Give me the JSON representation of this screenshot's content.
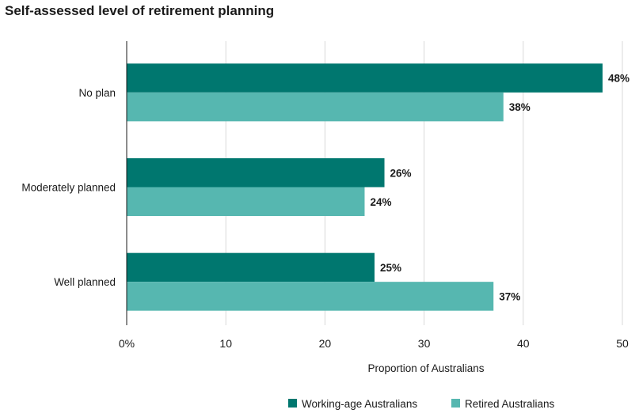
{
  "chart_data": {
    "type": "bar",
    "orientation": "horizontal",
    "title": "Self-assessed level of retirement planning",
    "categories": [
      "No plan",
      "Moderately planned",
      "Well planned"
    ],
    "series": [
      {
        "name": "Working-age Australians",
        "values": [
          48,
          26,
          25
        ],
        "labels": [
          "48%",
          "26%",
          "25%"
        ],
        "color": "#00776f"
      },
      {
        "name": "Retired Australians",
        "values": [
          38,
          24,
          37
        ],
        "labels": [
          "38%",
          "24%",
          "37%"
        ],
        "color": "#56b7b0"
      }
    ],
    "xlabel": "Proportion of Australians",
    "ylabel": "",
    "xlim": [
      0,
      50
    ],
    "xticks": [
      0,
      10,
      20,
      30,
      40,
      50
    ],
    "xtick_labels": [
      "0%",
      "10",
      "20",
      "30",
      "40",
      "50"
    ],
    "grid": true,
    "legend_position": "bottom"
  }
}
